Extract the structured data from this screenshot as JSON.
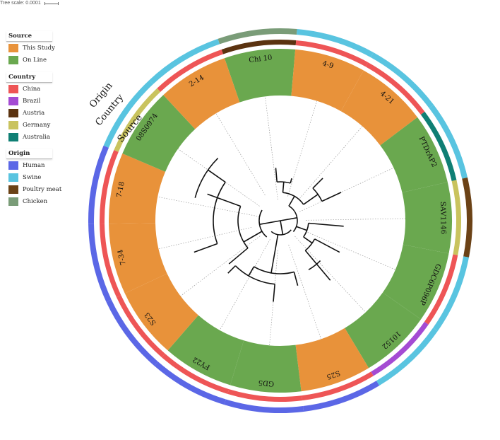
{
  "tree_scale": {
    "label": "Tree scale: 0.0001"
  },
  "ring_titles": {
    "origin": "Origin",
    "country": "Country",
    "source": "Source"
  },
  "legends": {
    "source": {
      "title": "Source",
      "items": [
        {
          "label": "This Study",
          "color": "#e8923a"
        },
        {
          "label": "On Line",
          "color": "#6aa84f"
        }
      ]
    },
    "country": {
      "title": "Country",
      "items": [
        {
          "label": "China",
          "color": "#ee5556"
        },
        {
          "label": "Brazil",
          "color": "#a44bd3"
        },
        {
          "label": "Austria",
          "color": "#5b3310"
        },
        {
          "label": "Germany",
          "color": "#c9c35e"
        },
        {
          "label": "Australia",
          "color": "#0f7f74"
        }
      ]
    },
    "origin": {
      "title": "Origin",
      "items": [
        {
          "label": "Human",
          "color": "#5b67e6"
        },
        {
          "label": "Swine",
          "color": "#59c4e0"
        },
        {
          "label": "Poultry meat",
          "color": "#6b4216"
        },
        {
          "label": "Chicken",
          "color": "#7a9c78"
        }
      ]
    }
  },
  "leaves": [
    {
      "name": "Chi 10",
      "source": "On Line",
      "country": "Austria",
      "origin": "Chicken"
    },
    {
      "name": "4-9",
      "source": "This Study",
      "country": "China",
      "origin": "Swine"
    },
    {
      "name": "4-21",
      "source": "This Study",
      "country": "China",
      "origin": "Swine"
    },
    {
      "name": "PTDrAP2",
      "source": "On Line",
      "country": "Australia",
      "origin": "Swine"
    },
    {
      "name": "SAV1146",
      "source": "On Line",
      "country": "Germany",
      "origin": "Poultry meat"
    },
    {
      "name": "GDC6P096P",
      "source": "On Line",
      "country": "China",
      "origin": "Swine"
    },
    {
      "name": "10152",
      "source": "On Line",
      "country": "Brazil",
      "origin": "Swine"
    },
    {
      "name": "S25",
      "source": "This Study",
      "country": "China",
      "origin": "Human"
    },
    {
      "name": "GD5",
      "source": "On Line",
      "country": "China",
      "origin": "Human"
    },
    {
      "name": "FY22",
      "source": "On Line",
      "country": "China",
      "origin": "Human"
    },
    {
      "name": "S23",
      "source": "This Study",
      "country": "China",
      "origin": "Human"
    },
    {
      "name": "7-34",
      "source": "This Study",
      "country": "China",
      "origin": "Human"
    },
    {
      "name": "7-18",
      "source": "This Study",
      "country": "China",
      "origin": "Human"
    },
    {
      "name": "08S0974",
      "source": "On Line",
      "country": "Germany",
      "origin": "Swine"
    },
    {
      "name": "2-14",
      "source": "This Study",
      "country": "China",
      "origin": "Swine"
    }
  ]
}
